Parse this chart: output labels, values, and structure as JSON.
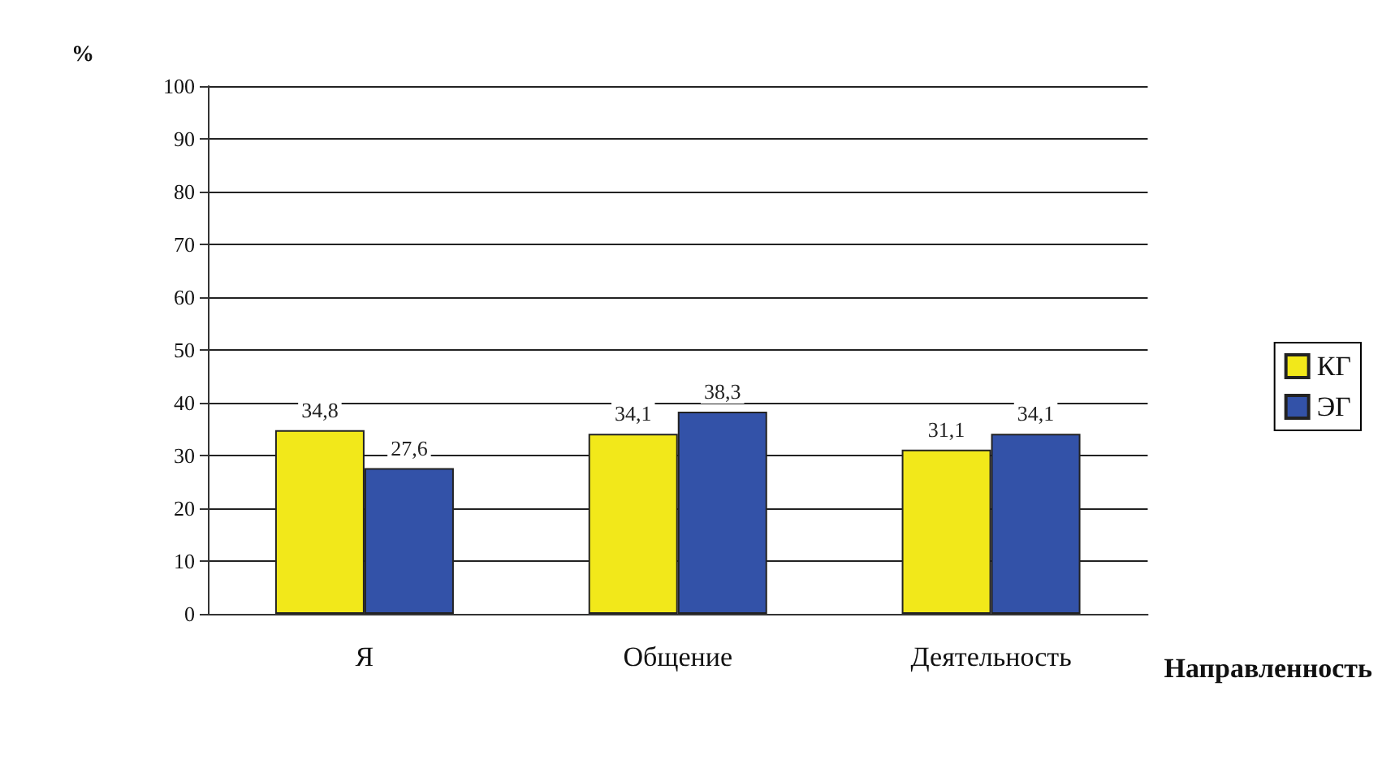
{
  "chart_data": {
    "type": "bar",
    "ylabel": "%",
    "xlabel": "Направленность",
    "categories": [
      "Я",
      "Общение",
      "Деятельность"
    ],
    "series": [
      {
        "name": "КГ",
        "color": "#f2e81a",
        "values": [
          34.8,
          34.1,
          31.1
        ],
        "value_labels": [
          "34,8",
          "34,1",
          "31,1"
        ]
      },
      {
        "name": "ЭГ",
        "color": "#3352a8",
        "values": [
          27.6,
          38.3,
          34.1
        ],
        "value_labels": [
          "27,6",
          "38,3",
          "34,1"
        ]
      }
    ],
    "ylim": [
      0,
      100
    ],
    "yticks": [
      0,
      10,
      20,
      30,
      40,
      50,
      60,
      70,
      80,
      90,
      100
    ],
    "grid": "y",
    "legend": "right"
  }
}
